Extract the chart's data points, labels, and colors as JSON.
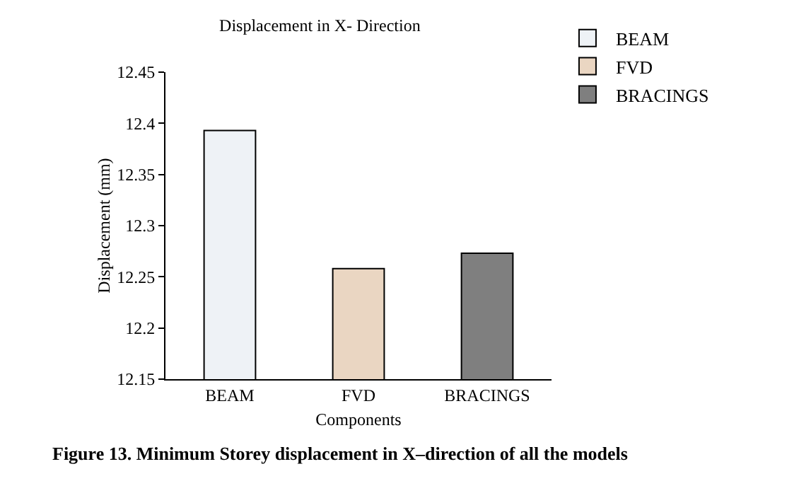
{
  "chart_data": {
    "type": "bar",
    "title": "Displacement in X- Direction",
    "xlabel": "Components",
    "ylabel": "Displacement (mm)",
    "categories": [
      "BEAM",
      "FVD",
      "BRACINGS"
    ],
    "series": [
      {
        "name": "BEAM",
        "color": "#eef2f6",
        "values": [
          12.393,
          null,
          null
        ]
      },
      {
        "name": "FVD",
        "color": "#ead6c2",
        "values": [
          null,
          12.258,
          null
        ]
      },
      {
        "name": "BRACINGS",
        "color": "#7f7f7f",
        "values": [
          null,
          null,
          12.273
        ]
      }
    ],
    "ylim": [
      12.15,
      12.45
    ],
    "yticks": [
      12.15,
      12.2,
      12.25,
      12.3,
      12.35,
      12.4,
      12.45
    ],
    "grid": false,
    "legend": "top right",
    "annotations": [
      "Figure 13. Minimum Storey displacement in X–direction of all the models"
    ]
  }
}
